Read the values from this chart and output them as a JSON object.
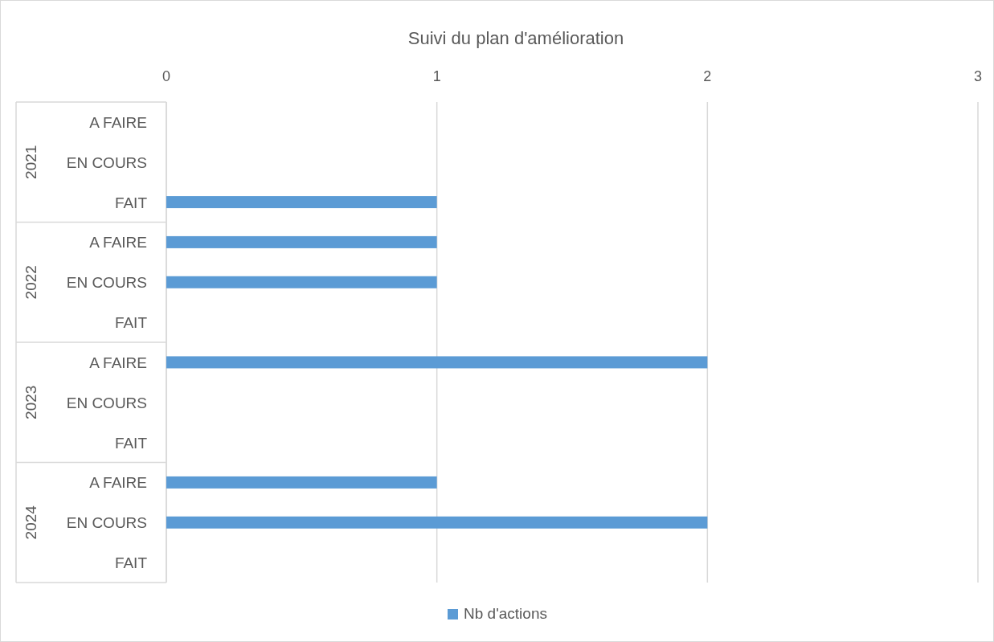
{
  "chart_data": {
    "type": "bar",
    "orientation": "horizontal",
    "title": "Suivi du plan d'amélioration",
    "categories": [
      "A FAIRE",
      "EN COURS",
      "FAIT",
      "A FAIRE",
      "EN COURS",
      "FAIT",
      "A FAIRE",
      "EN COURS",
      "FAIT",
      "A FAIRE",
      "EN COURS",
      "FAIT"
    ],
    "annotations": [
      "2021",
      "2022",
      "2023",
      "2024"
    ],
    "series": [
      {
        "name": "Nb d'actions",
        "color": "#5b9bd5",
        "values": [
          0,
          0,
          1,
          1,
          1,
          0,
          2,
          0,
          0,
          1,
          2,
          0
        ]
      }
    ],
    "xlim": [
      0,
      3
    ],
    "xticks": [
      0,
      1,
      2,
      3
    ],
    "grid": "x",
    "legend": "bottom"
  }
}
